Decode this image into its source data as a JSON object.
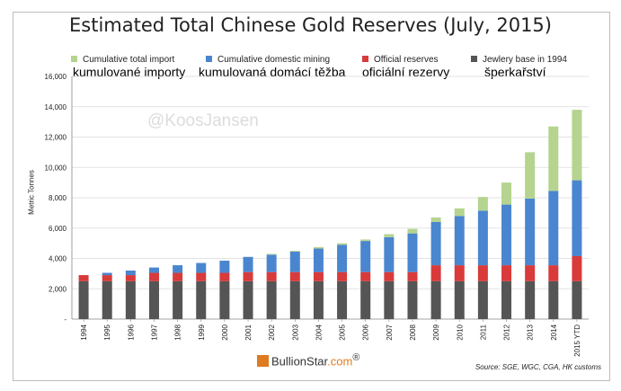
{
  "title": "Estimated Total Chinese Gold Reserves (July, 2015)",
  "legend": [
    {
      "label": "Cumulative total import",
      "color": "#b5d48f"
    },
    {
      "label": "Cumulative domestic mining",
      "color": "#4a86cf"
    },
    {
      "label": "Official reserves",
      "color": "#d93a3a"
    },
    {
      "label": "Jewlery base in 1994",
      "color": "#555555"
    }
  ],
  "czech_labels": [
    "kumulované importy",
    "kumulovaná domácí těžba",
    "oficiální rezervy",
    "šperkařství"
  ],
  "ylabel": "Metric Tonnes",
  "watermark": "@KoosJansen",
  "logo": {
    "name": "BullionStar",
    "domain": ".com",
    "reg": "®"
  },
  "source": "Source: SGE, WGC, CGA, HK customs",
  "chart_data": {
    "type": "bar",
    "stacked": true,
    "categories": [
      "1994",
      "1995",
      "1996",
      "1997",
      "1998",
      "1999",
      "2000",
      "2001",
      "2002",
      "2003",
      "2004",
      "2005",
      "2006",
      "2007",
      "2008",
      "2009",
      "2010",
      "2011",
      "2012",
      "2013",
      "2014",
      "2015 YTD"
    ],
    "series": [
      {
        "name": "Jewlery base in 1994",
        "color": "#555555",
        "values": [
          2500,
          2500,
          2500,
          2500,
          2500,
          2500,
          2500,
          2500,
          2500,
          2500,
          2500,
          2500,
          2500,
          2500,
          2500,
          2500,
          2500,
          2500,
          2500,
          2500,
          2500,
          2500
        ]
      },
      {
        "name": "Official reserves",
        "color": "#d93a3a",
        "values": [
          400,
          400,
          400,
          550,
          550,
          550,
          550,
          600,
          600,
          600,
          600,
          600,
          600,
          600,
          600,
          1050,
          1050,
          1050,
          1050,
          1050,
          1050,
          1650
        ]
      },
      {
        "name": "Cumulative domestic mining",
        "color": "#4a86cf",
        "values": [
          0,
          150,
          300,
          350,
          500,
          650,
          800,
          1000,
          1150,
          1350,
          1550,
          1800,
          2050,
          2300,
          2550,
          2850,
          3250,
          3600,
          4000,
          4400,
          4900,
          5000
        ]
      },
      {
        "name": "Cumulative total import",
        "color": "#b5d48f",
        "values": [
          0,
          0,
          0,
          0,
          0,
          0,
          0,
          0,
          50,
          50,
          100,
          100,
          100,
          200,
          300,
          300,
          500,
          900,
          1450,
          3050,
          4250,
          4650
        ]
      }
    ],
    "yticks": [
      "-",
      "2,000",
      "4,000",
      "6,000",
      "8,000",
      "10,000",
      "12,000",
      "14,000",
      "16,000"
    ],
    "ylim": [
      0,
      16000
    ],
    "ylabel": "Metric Tonnes",
    "grid": true
  }
}
